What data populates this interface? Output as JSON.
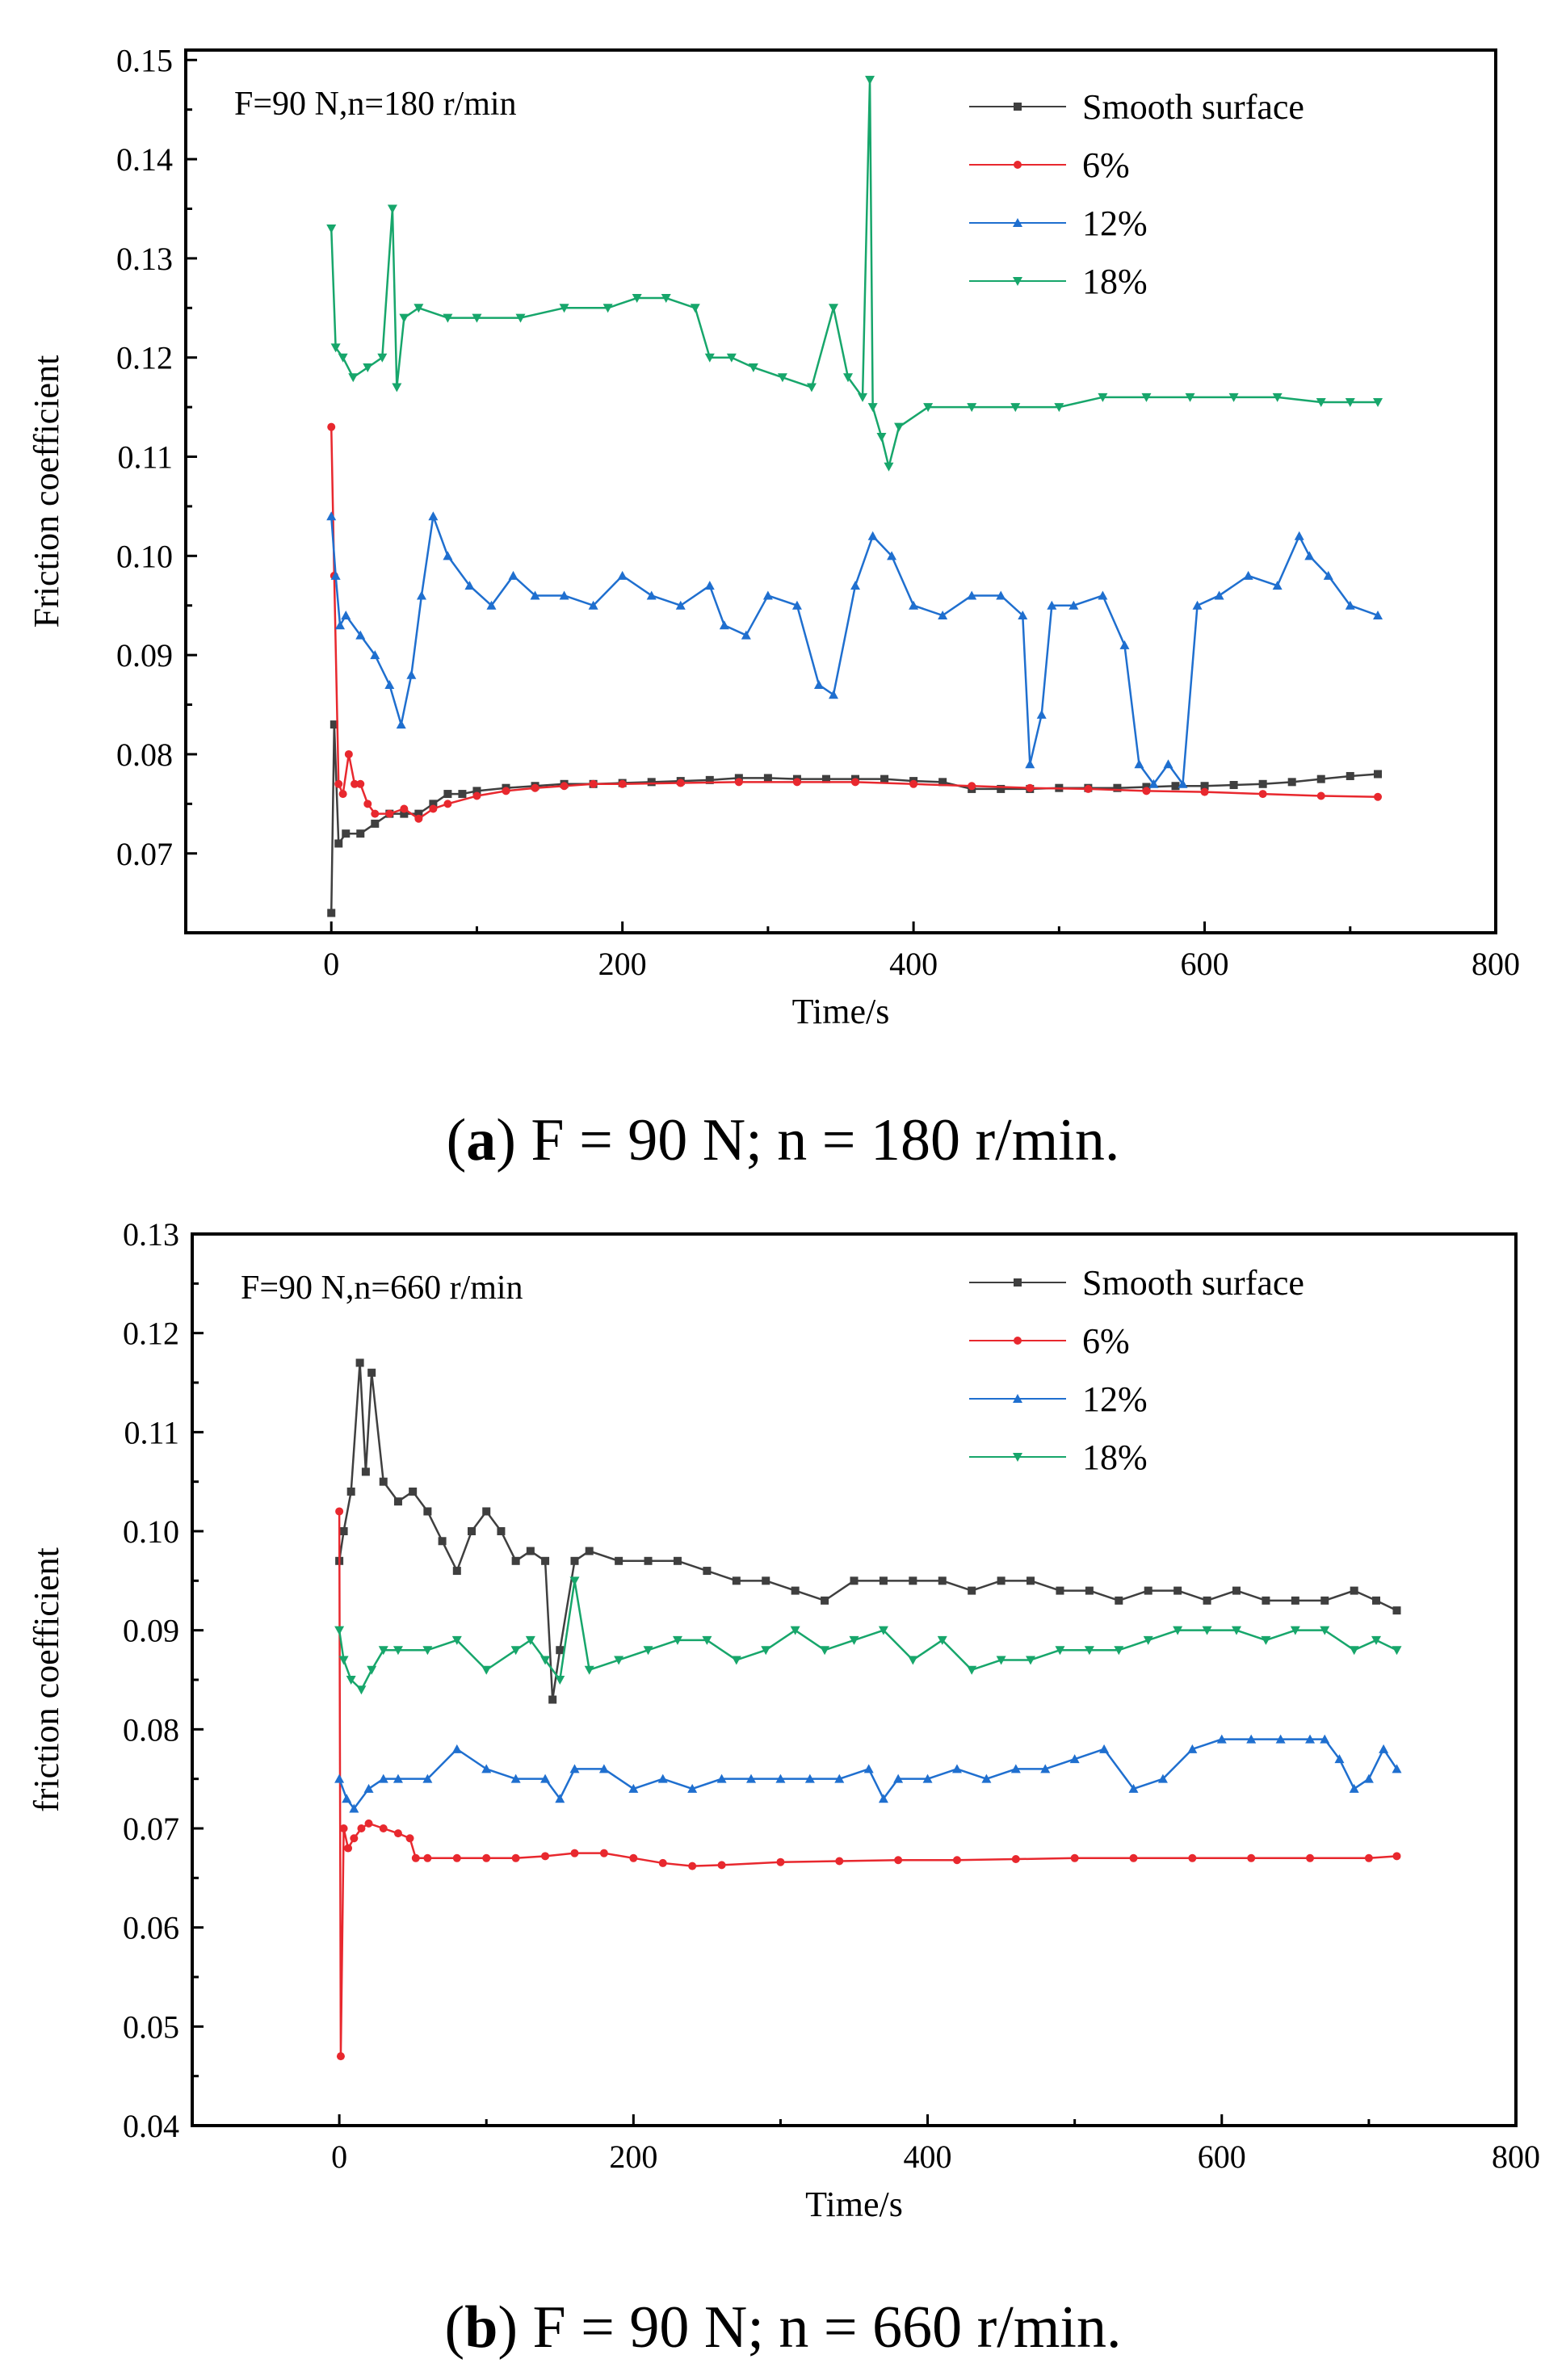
{
  "chart_data": [
    {
      "type": "scatter",
      "panel": "a",
      "annotation": "F=90 N,n=180 r/min",
      "xlabel": "Time/s",
      "ylabel": "Friction coefficient",
      "xlim": [
        -100,
        800
      ],
      "ylim": [
        0.062,
        0.151
      ],
      "xticks": [
        "0",
        "200",
        "400",
        "600",
        "800"
      ],
      "xtick_values": [
        0,
        200,
        400,
        600,
        800
      ],
      "yticks": [
        "0.07",
        "0.08",
        "0.09",
        "0.10",
        "0.11",
        "0.12",
        "0.13",
        "0.14",
        "0.15"
      ],
      "ytick_values": [
        0.07,
        0.08,
        0.09,
        0.1,
        0.11,
        0.12,
        0.13,
        0.14,
        0.15
      ],
      "legend_position": "top-right",
      "series": [
        {
          "name": "Smooth surface",
          "color": "#3f3f3f",
          "marker": "square",
          "x": [
            0,
            2,
            5,
            10,
            20,
            30,
            40,
            50,
            60,
            70,
            80,
            90,
            100,
            120,
            140,
            160,
            180,
            200,
            220,
            240,
            260,
            280,
            300,
            320,
            340,
            360,
            380,
            400,
            420,
            440,
            460,
            480,
            500,
            520,
            540,
            560,
            580,
            600,
            620,
            640,
            660,
            680,
            700,
            719
          ],
          "y": [
            0.064,
            0.083,
            0.071,
            0.072,
            0.072,
            0.073,
            0.074,
            0.074,
            0.074,
            0.075,
            0.076,
            0.076,
            0.0763,
            0.0766,
            0.0768,
            0.077,
            0.077,
            0.0771,
            0.0772,
            0.0773,
            0.0774,
            0.0776,
            0.0776,
            0.0775,
            0.0775,
            0.0775,
            0.0775,
            0.0773,
            0.0772,
            0.0765,
            0.0765,
            0.0765,
            0.0766,
            0.0766,
            0.0766,
            0.0767,
            0.0768,
            0.0768,
            0.0769,
            0.077,
            0.0772,
            0.0775,
            0.0778,
            0.078
          ]
        },
        {
          "name": "6%",
          "color": "#e8282e",
          "marker": "circle",
          "x": [
            0,
            2,
            5,
            8,
            12,
            16,
            20,
            25,
            30,
            40,
            50,
            60,
            70,
            80,
            100,
            120,
            140,
            160,
            180,
            200,
            240,
            280,
            320,
            360,
            400,
            440,
            480,
            520,
            560,
            600,
            640,
            680,
            719
          ],
          "y": [
            0.113,
            0.098,
            0.077,
            0.076,
            0.08,
            0.077,
            0.077,
            0.075,
            0.074,
            0.074,
            0.0745,
            0.0735,
            0.0745,
            0.075,
            0.0758,
            0.0763,
            0.0766,
            0.0768,
            0.077,
            0.077,
            0.0771,
            0.0772,
            0.0772,
            0.0772,
            0.077,
            0.0768,
            0.0766,
            0.0765,
            0.0763,
            0.0762,
            0.076,
            0.0758,
            0.0757
          ]
        },
        {
          "name": "12%",
          "color": "#1f6fcf",
          "marker": "triangle-up",
          "x": [
            0,
            3,
            6,
            10,
            20,
            30,
            40,
            48,
            55,
            62,
            70,
            80,
            95,
            110,
            125,
            140,
            160,
            180,
            200,
            220,
            240,
            260,
            270,
            285,
            300,
            320,
            335,
            345,
            360,
            372,
            385,
            400,
            420,
            440,
            460,
            475,
            480,
            488,
            495,
            510,
            530,
            545,
            555,
            565,
            575,
            585,
            595,
            610,
            630,
            650,
            665,
            672,
            685,
            700,
            719
          ],
          "y": [
            0.104,
            0.098,
            0.093,
            0.094,
            0.092,
            0.09,
            0.087,
            0.083,
            0.088,
            0.096,
            0.104,
            0.1,
            0.097,
            0.095,
            0.098,
            0.096,
            0.096,
            0.095,
            0.098,
            0.096,
            0.095,
            0.097,
            0.093,
            0.092,
            0.096,
            0.095,
            0.087,
            0.086,
            0.097,
            0.102,
            0.1,
            0.095,
            0.094,
            0.096,
            0.096,
            0.094,
            0.079,
            0.084,
            0.095,
            0.095,
            0.096,
            0.091,
            0.079,
            0.077,
            0.079,
            0.077,
            0.095,
            0.096,
            0.098,
            0.097,
            0.102,
            0.1,
            0.098,
            0.095,
            0.094
          ]
        },
        {
          "name": "18%",
          "color": "#17a66b",
          "marker": "triangle-down",
          "x": [
            0,
            3,
            8,
            15,
            25,
            35,
            42,
            45,
            50,
            60,
            80,
            100,
            130,
            160,
            190,
            210,
            230,
            250,
            260,
            275,
            290,
            310,
            330,
            345,
            355,
            365,
            370,
            372,
            378,
            383,
            390,
            410,
            440,
            470,
            500,
            530,
            560,
            590,
            620,
            650,
            680,
            700,
            719
          ],
          "y": [
            0.133,
            0.121,
            0.12,
            0.118,
            0.119,
            0.12,
            0.135,
            0.117,
            0.124,
            0.125,
            0.124,
            0.124,
            0.124,
            0.125,
            0.125,
            0.126,
            0.126,
            0.125,
            0.12,
            0.12,
            0.119,
            0.118,
            0.117,
            0.125,
            0.118,
            0.116,
            0.148,
            0.115,
            0.112,
            0.109,
            0.113,
            0.115,
            0.115,
            0.115,
            0.115,
            0.116,
            0.116,
            0.116,
            0.116,
            0.116,
            0.1155,
            0.1155,
            0.1155
          ]
        }
      ]
    },
    {
      "type": "scatter",
      "panel": "b",
      "annotation": "F=90 N,n=660 r/min",
      "xlabel": "Time/s",
      "ylabel": "friction coefficient",
      "xlim": [
        -100,
        800
      ],
      "ylim": [
        0.04,
        0.13
      ],
      "xticks": [
        "0",
        "200",
        "400",
        "600",
        "800"
      ],
      "xtick_values": [
        0,
        200,
        400,
        600,
        800
      ],
      "yticks": [
        "0.04",
        "0.05",
        "0.06",
        "0.07",
        "0.08",
        "0.09",
        "0.10",
        "0.11",
        "0.12",
        "0.13"
      ],
      "ytick_values": [
        0.04,
        0.05,
        0.06,
        0.07,
        0.08,
        0.09,
        0.1,
        0.11,
        0.12,
        0.13
      ],
      "legend_position": "top-right",
      "series": [
        {
          "name": "Smooth surface",
          "color": "#3f3f3f",
          "marker": "square",
          "x": [
            0,
            3,
            8,
            14,
            18,
            22,
            30,
            40,
            50,
            60,
            70,
            80,
            90,
            100,
            110,
            120,
            130,
            140,
            145,
            150,
            160,
            170,
            190,
            210,
            230,
            250,
            270,
            290,
            310,
            330,
            350,
            370,
            390,
            410,
            430,
            450,
            470,
            490,
            510,
            530,
            550,
            570,
            590,
            610,
            630,
            650,
            670,
            690,
            705,
            719
          ],
          "y": [
            0.097,
            0.1,
            0.104,
            0.117,
            0.106,
            0.116,
            0.105,
            0.103,
            0.104,
            0.102,
            0.099,
            0.096,
            0.1,
            0.102,
            0.1,
            0.097,
            0.098,
            0.097,
            0.083,
            0.088,
            0.097,
            0.098,
            0.097,
            0.097,
            0.097,
            0.096,
            0.095,
            0.095,
            0.094,
            0.093,
            0.095,
            0.095,
            0.095,
            0.095,
            0.094,
            0.095,
            0.095,
            0.094,
            0.094,
            0.093,
            0.094,
            0.094,
            0.093,
            0.094,
            0.093,
            0.093,
            0.093,
            0.094,
            0.093,
            0.092
          ]
        },
        {
          "name": "6%",
          "color": "#e8282e",
          "marker": "circle",
          "x": [
            0,
            1,
            3,
            6,
            10,
            15,
            20,
            30,
            40,
            48,
            52,
            60,
            80,
            100,
            120,
            140,
            160,
            180,
            200,
            220,
            240,
            260,
            300,
            340,
            380,
            420,
            460,
            500,
            540,
            580,
            620,
            660,
            700,
            719
          ],
          "y": [
            0.102,
            0.047,
            0.07,
            0.068,
            0.069,
            0.07,
            0.0705,
            0.07,
            0.0695,
            0.069,
            0.067,
            0.067,
            0.067,
            0.067,
            0.067,
            0.0672,
            0.0675,
            0.0675,
            0.067,
            0.0665,
            0.0662,
            0.0663,
            0.0666,
            0.0667,
            0.0668,
            0.0668,
            0.0669,
            0.067,
            0.067,
            0.067,
            0.067,
            0.067,
            0.067,
            0.0672
          ]
        },
        {
          "name": "12%",
          "color": "#1f6fcf",
          "marker": "triangle-up",
          "x": [
            0,
            5,
            10,
            20,
            30,
            40,
            60,
            80,
            100,
            120,
            140,
            150,
            160,
            180,
            200,
            220,
            240,
            260,
            280,
            300,
            320,
            340,
            360,
            370,
            380,
            400,
            420,
            440,
            460,
            480,
            500,
            520,
            540,
            560,
            580,
            600,
            620,
            640,
            660,
            670,
            680,
            690,
            700,
            710,
            719
          ],
          "y": [
            0.075,
            0.073,
            0.072,
            0.074,
            0.075,
            0.075,
            0.075,
            0.078,
            0.076,
            0.075,
            0.075,
            0.073,
            0.076,
            0.076,
            0.074,
            0.075,
            0.074,
            0.075,
            0.075,
            0.075,
            0.075,
            0.075,
            0.076,
            0.073,
            0.075,
            0.075,
            0.076,
            0.075,
            0.076,
            0.076,
            0.077,
            0.078,
            0.074,
            0.075,
            0.078,
            0.079,
            0.079,
            0.079,
            0.079,
            0.079,
            0.077,
            0.074,
            0.075,
            0.078,
            0.076
          ]
        },
        {
          "name": "18%",
          "color": "#17a66b",
          "marker": "triangle-down",
          "x": [
            0,
            3,
            8,
            15,
            22,
            30,
            40,
            60,
            80,
            100,
            120,
            130,
            140,
            150,
            160,
            170,
            190,
            210,
            230,
            250,
            270,
            290,
            310,
            330,
            350,
            370,
            390,
            410,
            430,
            450,
            470,
            490,
            510,
            530,
            550,
            570,
            590,
            610,
            630,
            650,
            670,
            690,
            705,
            719
          ],
          "y": [
            0.09,
            0.087,
            0.085,
            0.084,
            0.086,
            0.088,
            0.088,
            0.088,
            0.089,
            0.086,
            0.088,
            0.089,
            0.087,
            0.085,
            0.095,
            0.086,
            0.087,
            0.088,
            0.089,
            0.089,
            0.087,
            0.088,
            0.09,
            0.088,
            0.089,
            0.09,
            0.087,
            0.089,
            0.086,
            0.087,
            0.087,
            0.088,
            0.088,
            0.088,
            0.089,
            0.09,
            0.09,
            0.09,
            0.089,
            0.09,
            0.09,
            0.088,
            0.089,
            0.088
          ]
        }
      ]
    }
  ],
  "captions": [
    {
      "label": "(a)",
      "bold": "a",
      "text": " F = 90 N; n = 180 r/min."
    },
    {
      "label": "(b)",
      "bold": "b",
      "text": " F = 90 N; n = 660 r/min."
    }
  ]
}
